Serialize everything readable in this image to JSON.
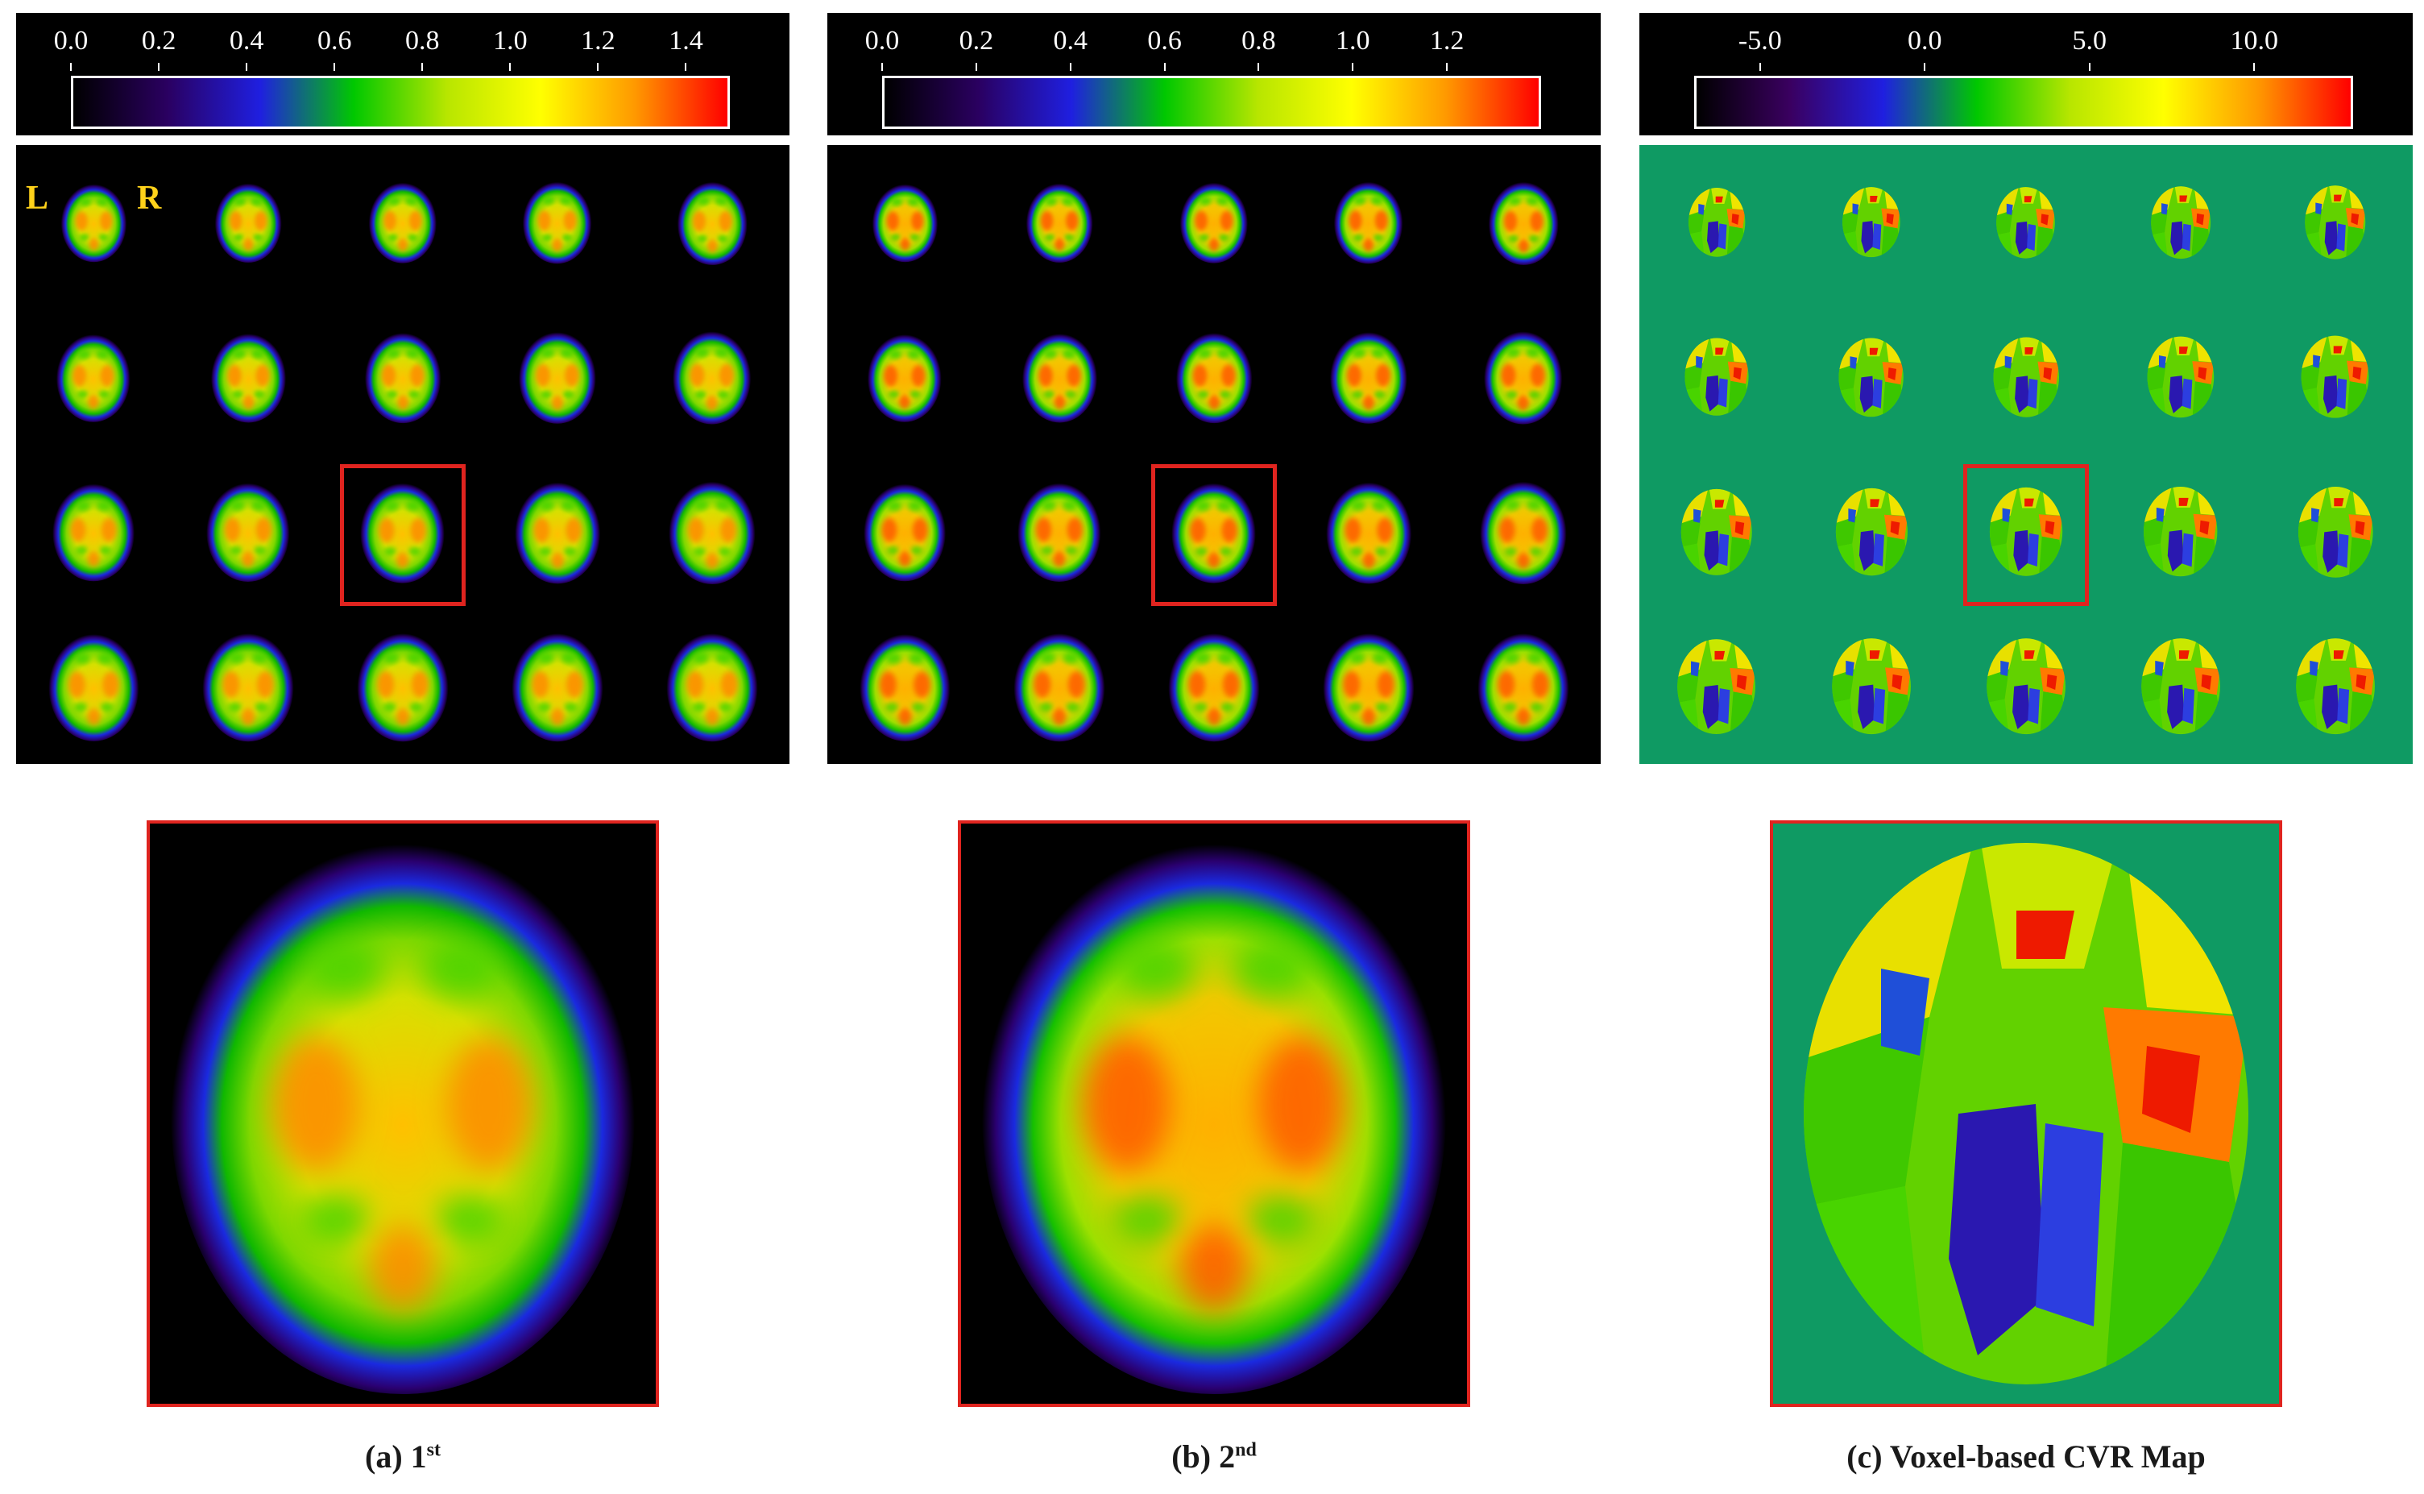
{
  "panels": [
    {
      "id": "a",
      "caption_prefix": "(a) 1",
      "caption_sup": "st",
      "colorbar_ticks": [
        "0.0",
        "0.2",
        "0.4",
        "0.6",
        "0.8",
        "1.0",
        "1.2",
        "1.4"
      ],
      "colorbar_range": [
        0.0,
        1.5
      ],
      "colorbar_colors": [
        "#000000",
        "#2a0060",
        "#1f1fe0",
        "#00c800",
        "#b8e600",
        "#ffff00",
        "#ff9a00",
        "#ff0000"
      ],
      "background": "black",
      "orientation_left": "L",
      "orientation_right": "R"
    },
    {
      "id": "b",
      "caption_prefix": "(b) 2",
      "caption_sup": "nd",
      "colorbar_ticks": [
        "0.0",
        "0.2",
        "0.4",
        "0.6",
        "0.8",
        "1.0",
        "1.2"
      ],
      "colorbar_range": [
        0.0,
        1.4
      ],
      "colorbar_colors": [
        "#000000",
        "#2a0060",
        "#1f1fe0",
        "#00c800",
        "#b8e600",
        "#ffff00",
        "#ff9a00",
        "#ff0000"
      ],
      "background": "black"
    },
    {
      "id": "c",
      "caption_prefix": "(c) Voxel-based CVR Map",
      "caption_sup": "",
      "colorbar_ticks": [
        "-5.0",
        "0.0",
        "5.0",
        "10.0"
      ],
      "colorbar_range": [
        -7.0,
        13.0
      ],
      "colorbar_colors": [
        "#000000",
        "#3a0060",
        "#1f1fe0",
        "#00c800",
        "#b8e600",
        "#ffff00",
        "#ff9a00",
        "#ff0000"
      ],
      "background": "green"
    }
  ],
  "grid": {
    "rows": 4,
    "cols": 5,
    "selected_row": 3,
    "selected_col": 3
  },
  "colors": {
    "selection": "#e0241f",
    "orientation_text": "#ffd21a",
    "map_background": "#0f9a63"
  }
}
